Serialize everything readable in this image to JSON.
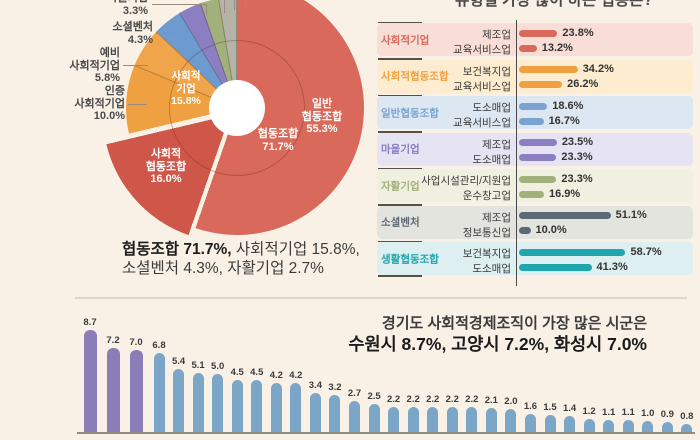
{
  "texts": {
    "top_title_clipped": "유형별 가장 많이 하는 업종은?",
    "top_title_note": "title cut off at top edge of screenshot",
    "summary_bold": "협동조합 71.7%,",
    "summary_rest": " 사회적기업 15.8%,",
    "summary_line2": "소셜벤처 4.3%, 자활기업 2.7%"
  },
  "chart_data": [
    {
      "type": "pie",
      "subtype": "sunburst-donut",
      "inner": [
        {
          "label": "협동조합",
          "value": 71.7
        },
        {
          "label": "사회적기업",
          "value": 15.8
        }
      ],
      "outer": [
        {
          "label": "일반 협동조합",
          "value": 55.3
        },
        {
          "label": "사회적 협동조합",
          "value": 16.0,
          "exploded": true
        },
        {
          "label": "인증 사회적기업",
          "value": 10.0
        },
        {
          "label": "예비 사회적기업",
          "value": 5.8
        },
        {
          "label": "소셜벤처",
          "value": 4.3
        },
        {
          "label": "마을기업",
          "value": 3.3,
          "label_partially_cut": true
        },
        {
          "label": "자활기업",
          "value": 2.7
        },
        {
          "label": "",
          "value": 2.6,
          "estimated": true,
          "label_cut_off": true
        }
      ],
      "colors": [
        "#d9695a",
        "#cf5749",
        "#efa041",
        "#f0a54a",
        "#6d9bcf",
        "#8b7ec1",
        "#a2b07c",
        "#b5b3a8"
      ],
      "wedge_labels": [
        {
          "lines": [
            "협동조합",
            "71.7%"
          ]
        },
        {
          "lines": [
            "사회적",
            "기업",
            "15.8%"
          ]
        },
        {
          "lines": [
            "일반",
            "협동조합",
            "55.3%"
          ]
        },
        {
          "lines": [
            "사회적",
            "협동조합",
            "16.0%"
          ]
        }
      ],
      "callouts": [
        {
          "lines": [
            "마을기업",
            "3.3%"
          ],
          "partially_cut": true
        },
        {
          "lines": [
            "소셜벤처",
            "4.3%"
          ]
        },
        {
          "lines": [
            "예비",
            "사회적기업",
            "5.8%"
          ]
        },
        {
          "lines": [
            "인증",
            "사회적기업",
            "10.0%"
          ]
        }
      ]
    },
    {
      "type": "bar",
      "orientation": "horizontal",
      "description": "유형별 주요 업종 비율",
      "groups": [
        {
          "name": "사회적기업",
          "color": "#d9695a",
          "bg": "#f8ded7",
          "items": [
            {
              "label": "제조업",
              "value": 23.8
            },
            {
              "label": "교육서비스업",
              "value": 13.2
            }
          ]
        },
        {
          "name": "사회적협동조합",
          "color": "#efa041",
          "bg": "#fdeccf",
          "items": [
            {
              "label": "보건복지업",
              "value": 34.2
            },
            {
              "label": "교육서비스업",
              "value": 26.2
            }
          ]
        },
        {
          "name": "일반협동조합",
          "color": "#7aa3d2",
          "bg": "#dde7f2",
          "items": [
            {
              "label": "도소매업",
              "value": 18.6
            },
            {
              "label": "교육서비스업",
              "value": 16.7
            }
          ]
        },
        {
          "name": "마을기업",
          "color": "#8b7ec1",
          "bg": "#e6e3f2",
          "items": [
            {
              "label": "제조업",
              "value": 23.5
            },
            {
              "label": "도소매업",
              "value": 23.3
            }
          ]
        },
        {
          "name": "자활기업",
          "color": "#a2b07c",
          "bg": "#eff0e0",
          "items": [
            {
              "label": "사업시설관리/지원업",
              "value": 23.3
            },
            {
              "label": "운수창고업",
              "value": 16.9
            }
          ]
        },
        {
          "name": "소셜벤처",
          "color": "#5d6974",
          "bg": "#e4e4df",
          "items": [
            {
              "label": "제조업",
              "value": 51.1
            },
            {
              "label": "정보통신업",
              "value": 10.0
            }
          ]
        },
        {
          "name": "생활협동조합",
          "color": "#1fa5ac",
          "bg": "#ddeff0",
          "items": [
            {
              "label": "보건복지업",
              "value": 58.7
            },
            {
              "label": "도소매업",
              "value": 41.3
            }
          ]
        }
      ]
    },
    {
      "type": "bar",
      "orientation": "vertical",
      "title_line1": "경기도 사회적경제조직이 가장 많은 시군은",
      "title_line2": "수원시 8.7%, 고양시 7.2%, 화성시 7.0%",
      "values": [
        8.7,
        7.2,
        7.0,
        6.8,
        5.4,
        5.1,
        5.0,
        4.5,
        4.5,
        4.2,
        4.2,
        3.4,
        3.2,
        2.7,
        2.5,
        2.2,
        2.2,
        2.2,
        2.2,
        2.2,
        2.1,
        2.0,
        1.6,
        1.5,
        1.4,
        1.2,
        1.1,
        1.1,
        1.0,
        0.9,
        0.8
      ],
      "highlight_first": 3,
      "highlight_color": "#8b7eb8",
      "bar_color": "#7ba6c8",
      "x_labels_cut_off": true
    }
  ]
}
